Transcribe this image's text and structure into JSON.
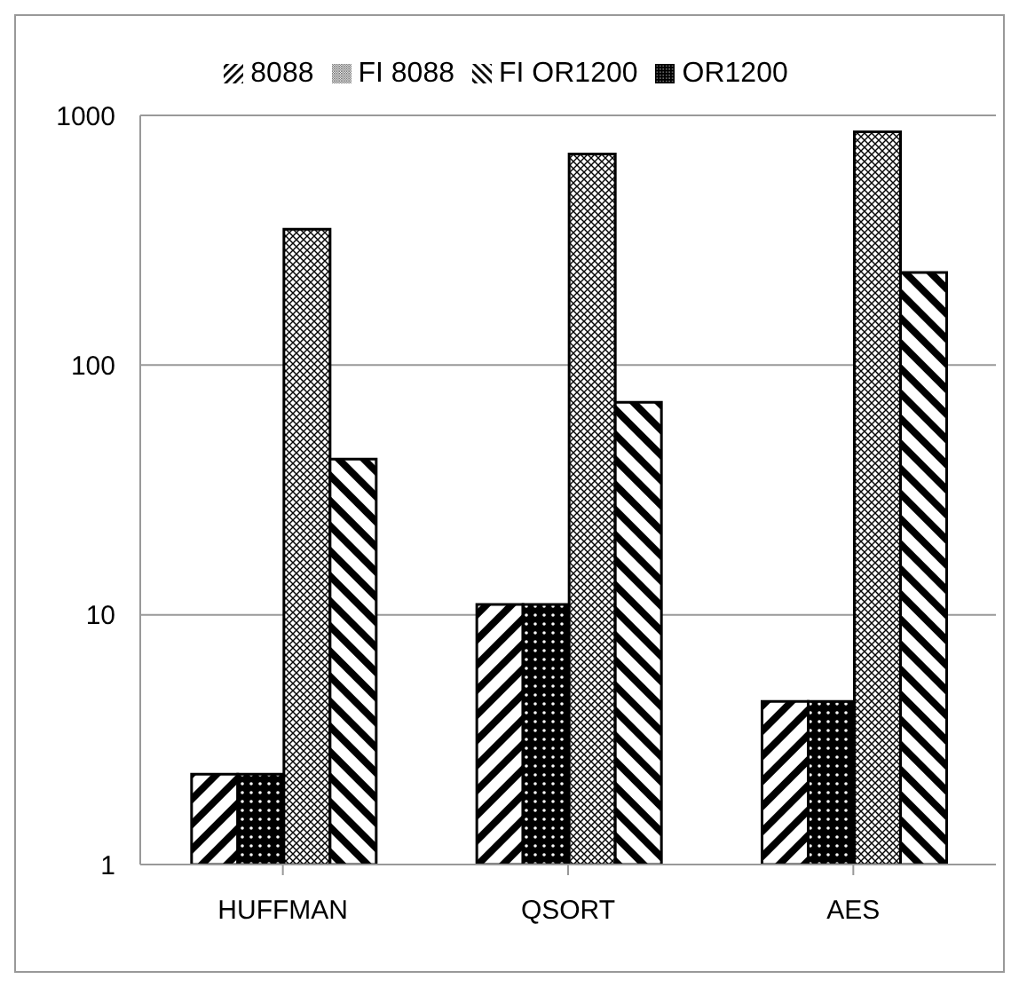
{
  "chart_data": {
    "type": "bar",
    "categories": [
      "HUFFMAN",
      "QSORT",
      "AES"
    ],
    "series": [
      {
        "name": "8088",
        "color": "#000000",
        "values": [
          2.3,
          11,
          4.5
        ]
      },
      {
        "name": "OR1200",
        "color": "#000000",
        "values": [
          2.3,
          11,
          4.5
        ]
      },
      {
        "name": "FI 8088",
        "color": "#000000",
        "values": [
          350,
          700,
          860
        ]
      },
      {
        "name": "FI OR1200",
        "color": "#000000",
        "values": [
          42,
          71,
          235
        ]
      }
    ],
    "log": true,
    "ylim": [
      1,
      1000
    ],
    "yticks": [
      1,
      10,
      100,
      1000
    ],
    "grid": "y",
    "legend": "top"
  }
}
